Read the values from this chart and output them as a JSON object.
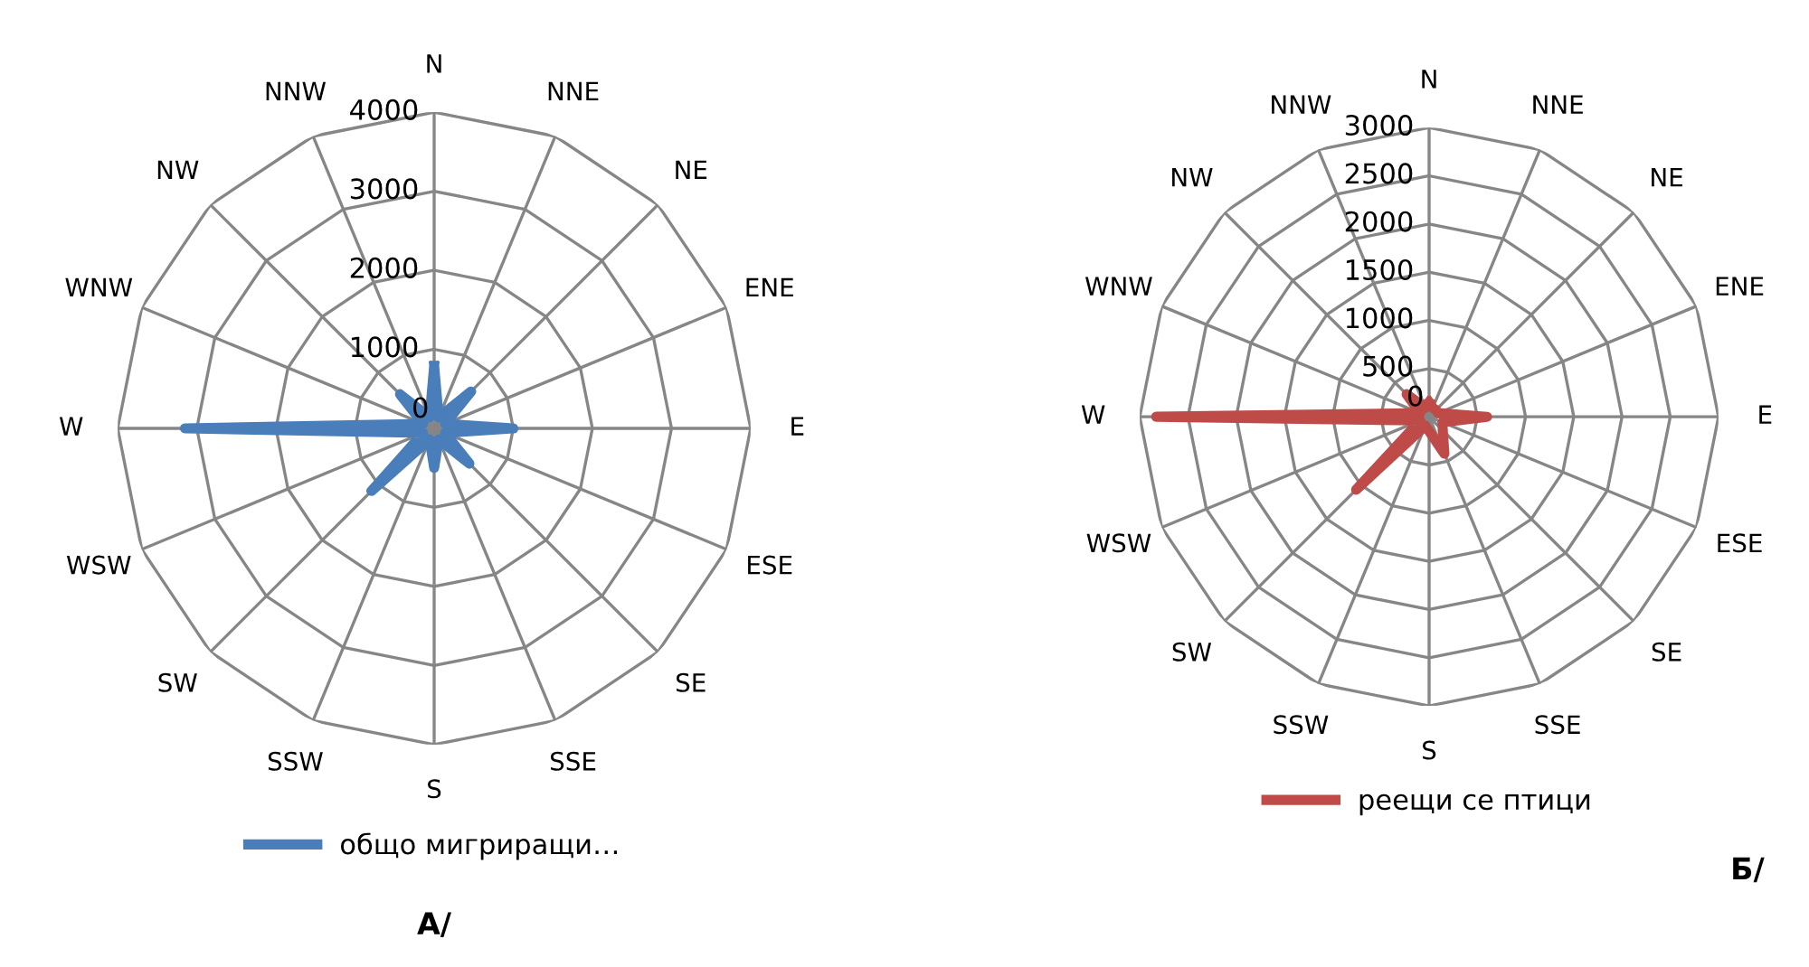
{
  "chart_data": [
    {
      "type": "radar",
      "categories": [
        "N",
        "NNE",
        "NE",
        "ENE",
        "E",
        "ESE",
        "SE",
        "SSE",
        "S",
        "SSW",
        "SW",
        "WSW",
        "W",
        "WNW",
        "NW",
        "NNW"
      ],
      "ylim": [
        0,
        4000
      ],
      "yticks": [
        0,
        1000,
        2000,
        3000,
        4000
      ],
      "grid": true,
      "legend": "bottom",
      "marker": "none",
      "line_style": "solid",
      "series": [
        {
          "name": "общо мигриращи…",
          "color": "#4a7ebb",
          "values": [
            790,
            150,
            660,
            150,
            1000,
            150,
            630,
            150,
            500,
            150,
            1120,
            150,
            3150,
            150,
            610,
            150
          ]
        }
      ],
      "annotations": [
        "А/"
      ]
    },
    {
      "type": "radar",
      "categories": [
        "N",
        "NNE",
        "NE",
        "ENE",
        "E",
        "ESE",
        "SE",
        "SSE",
        "S",
        "SSW",
        "SW",
        "WSW",
        "W",
        "WNW",
        "NW",
        "NNW"
      ],
      "ylim": [
        0,
        3000
      ],
      "yticks": [
        0,
        500,
        1000,
        1500,
        2000,
        2500,
        3000
      ],
      "grid": true,
      "legend": "bottom",
      "marker": "none",
      "line_style": "solid",
      "series": [
        {
          "name": "реещи се птици",
          "color": "#be4b48",
          "values": [
            150,
            100,
            100,
            100,
            600,
            150,
            200,
            415,
            150,
            100,
            1070,
            100,
            2830,
            100,
            330,
            100
          ]
        }
      ],
      "annotations": [
        "Б/"
      ]
    }
  ]
}
